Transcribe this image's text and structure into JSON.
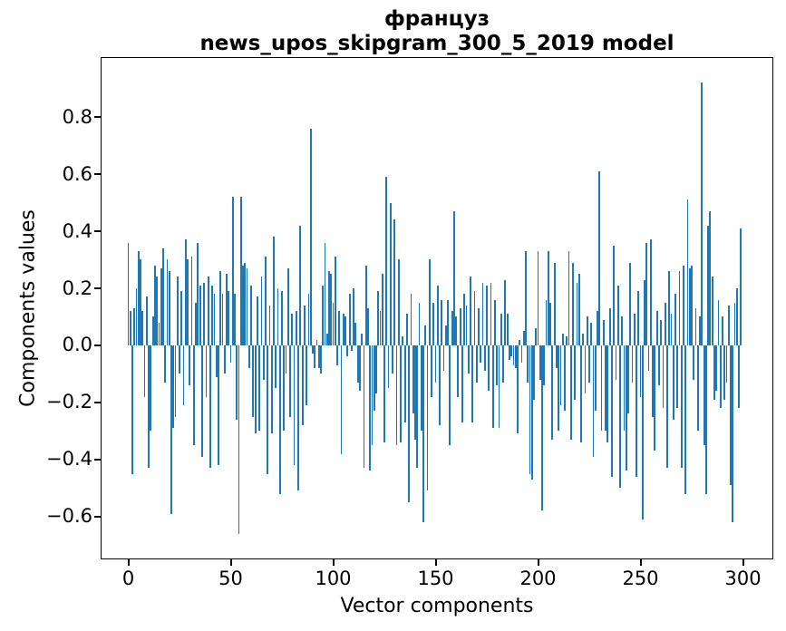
{
  "chart_data": {
    "type": "bar",
    "title_line1": "француз",
    "title_line2": "news_upos_skipgram_300_5_2019 model",
    "xlabel": "Vector components",
    "ylabel": "Components values",
    "bar_color": "#1f77b4",
    "grid": false,
    "legend": "none",
    "x_ticks": [
      0,
      50,
      100,
      150,
      200,
      250,
      300
    ],
    "x_tick_labels": [
      "0",
      "50",
      "100",
      "150",
      "200",
      "250",
      "300"
    ],
    "y_ticks": [
      0.8,
      0.6,
      0.4,
      0.2,
      0.0,
      -0.2,
      -0.4,
      -0.6
    ],
    "y_tick_labels": [
      "0.8",
      "0.6",
      "0.4",
      "0.2",
      "0.0",
      "−0.2",
      "−0.4",
      "−0.6"
    ],
    "xlim": [
      -13.5,
      314.8
    ],
    "ylim": [
      -0.75,
      1.01
    ],
    "x_start": 0,
    "values": [
      0.36,
      0.12,
      -0.45,
      0.13,
      0.2,
      0.33,
      0.3,
      0.12,
      -0.18,
      0.17,
      -0.43,
      -0.3,
      0.1,
      0.28,
      0.24,
      0.08,
      0.27,
      0.34,
      -0.13,
      0.3,
      0.26,
      -0.59,
      -0.29,
      -0.25,
      0.24,
      -0.1,
      0.19,
      -0.21,
      0.37,
      0.3,
      -0.14,
      0.31,
      -0.35,
      0.15,
      0.36,
      0.21,
      -0.39,
      0.22,
      -0.18,
      0.24,
      -0.43,
      0.21,
      0.18,
      -0.11,
      -0.42,
      0.26,
      0.18,
      -0.1,
      0.25,
      0.19,
      -0.06,
      0.52,
      0.18,
      -0.26,
      -0.66,
      0.52,
      0.28,
      0.29,
      0.27,
      -0.08,
      0.21,
      -0.25,
      -0.31,
      0.17,
      -0.3,
      0.24,
      -0.12,
      0.31,
      -0.45,
      0.14,
      -0.31,
      0.38,
      -0.15,
      0.2,
      -0.52,
      0.19,
      -0.3,
      -0.1,
      0.27,
      -0.25,
      0.11,
      -0.42,
      0.12,
      -0.51,
      0.42,
      -0.28,
      0.14,
      -0.21,
      0.18,
      0.76,
      -0.03,
      -0.08,
      0.02,
      -0.08,
      -0.1,
      0.21,
      0.36,
      0.04,
      0.26,
      0.25,
      0.15,
      0.31,
      -0.07,
      0.12,
      -0.38,
      0.11,
      0.1,
      -0.04,
      0.18,
      -0.02,
      0.2,
      0.08,
      -0.13,
      -0.16,
      0.04,
      -0.43,
      0.28,
      0.13,
      -0.44,
      -0.35,
      -0.23,
      -0.17,
      0.19,
      0.12,
      0.25,
      -0.34,
      0.59,
      -0.15,
      0.5,
      -0.1,
      0.44,
      -0.35,
      0.3,
      -0.34,
      0.03,
      -0.27,
      0.11,
      -0.55,
      0.18,
      -0.24,
      -0.33,
      -0.43,
      0.15,
      -0.3,
      -0.62,
      0.07,
      -0.51,
      0.3,
      -0.18,
      0.15,
      -0.13,
      0.21,
      -0.28,
      0.16,
      -0.09,
      0.07,
      0.16,
      -0.35,
      0.12,
      0.47,
      0.1,
      -0.18,
      0.13,
      -0.27,
      0.18,
      0.14,
      -0.1,
      0.24,
      -0.27,
      0.19,
      -0.13,
      0.13,
      -0.06,
      0.22,
      -0.09,
      0.21,
      -0.16,
      0.22,
      -0.29,
      0.16,
      -0.14,
      -0.29,
      0.11,
      -0.13,
      0.23,
      0.11,
      -0.05,
      -0.04,
      -0.07,
      -0.08,
      -0.31,
      0.02,
      -0.06,
      0.05,
      0.33,
      -0.13,
      -0.45,
      -0.47,
      -0.19,
      0.06,
      0.33,
      -0.12,
      -0.58,
      -0.14,
      0.16,
      0.33,
      0.15,
      -0.33,
      0.29,
      -0.08,
      -0.3,
      -0.21,
      0.04,
      -0.23,
      0.03,
      0.33,
      -0.33,
      0.29,
      -0.19,
      0.22,
      0.25,
      -0.34,
      0.04,
      -0.17,
      0.1,
      -0.13,
      0.08,
      -0.39,
      -0.23,
      0.12,
      0.61,
      -0.3,
      0.09,
      -0.3,
      -0.34,
      0.13,
      -0.46,
      0.35,
      -0.12,
      0.21,
      -0.5,
      0.1,
      -0.3,
      -0.44,
      -0.24,
      0.29,
      -0.13,
      0.11,
      -0.46,
      0.19,
      -0.18,
      -0.61,
      0.23,
      0.36,
      -0.09,
      0.37,
      -0.25,
      -0.37,
      0.12,
      -0.14,
      0.09,
      -0.22,
      0.15,
      -0.43,
      0.26,
      0.11,
      -0.26,
      0.18,
      -0.22,
      0.26,
      -0.43,
      0.28,
      -0.52,
      0.51,
      0.27,
      0.28,
      -0.12,
      0.13,
      -0.3,
      0.1,
      0.92,
      -0.35,
      -0.52,
      0.42,
      0.47,
      0.24,
      -0.19,
      -0.16,
      0.16,
      -0.22,
      0.1,
      -0.19,
      -0.13,
      0.14,
      -0.49,
      -0.62,
      0.15,
      0.2,
      -0.22,
      0.41
    ]
  }
}
